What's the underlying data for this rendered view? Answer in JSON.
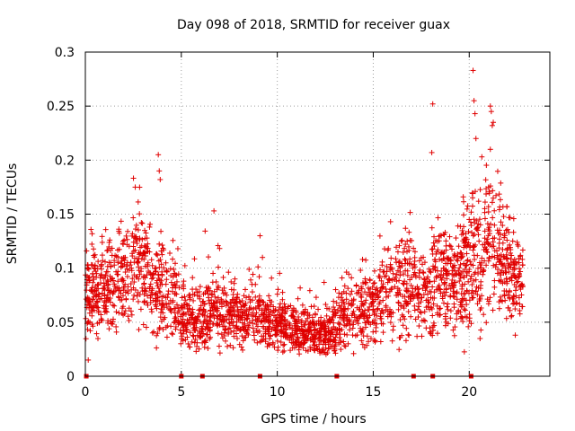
{
  "chart_data": {
    "type": "scatter",
    "title": "Day 098 of 2018, SRMTID for receiver guax",
    "xlabel": "GPS time / hours",
    "ylabel": "SRMTID / TECUs",
    "xlim": [
      0,
      24.2
    ],
    "ylim": [
      0,
      0.3
    ],
    "xticks": [
      0,
      5,
      10,
      15,
      20
    ],
    "xtick_labels": [
      "0",
      "5",
      "10",
      "15",
      "20"
    ],
    "yticks": [
      0,
      0.05,
      0.1,
      0.15,
      0.2,
      0.25,
      0.3
    ],
    "ytick_labels": [
      "0",
      "0.05",
      "0.1",
      "0.15",
      "0.2",
      "0.25",
      "0.3"
    ],
    "grid": true,
    "marker": "+",
    "color": "#e00000",
    "zero_level_markers_x": [
      0.05,
      5.0,
      6.1,
      9.1,
      13.1,
      17.1,
      18.1,
      20.1
    ],
    "series": [
      {
        "name": "SRMTID",
        "envelope_x": [
          0.0,
          0.5,
          1.0,
          1.5,
          2.0,
          2.5,
          3.0,
          3.5,
          4.0,
          4.5,
          5.0,
          5.5,
          6.0,
          6.5,
          7.0,
          7.5,
          8.0,
          8.5,
          9.0,
          9.5,
          10.0,
          10.5,
          11.0,
          11.5,
          12.0,
          12.5,
          13.0,
          13.5,
          14.0,
          14.5,
          15.0,
          15.5,
          16.0,
          16.5,
          17.0,
          17.5,
          18.0,
          18.5,
          19.0,
          19.5,
          20.0,
          20.5,
          21.0,
          21.5,
          22.0,
          22.5,
          22.8
        ],
        "envelope_mean": [
          0.075,
          0.08,
          0.082,
          0.085,
          0.09,
          0.1,
          0.105,
          0.08,
          0.085,
          0.07,
          0.058,
          0.055,
          0.052,
          0.06,
          0.058,
          0.055,
          0.055,
          0.055,
          0.055,
          0.052,
          0.048,
          0.045,
          0.042,
          0.04,
          0.038,
          0.037,
          0.045,
          0.06,
          0.062,
          0.06,
          0.065,
          0.075,
          0.08,
          0.085,
          0.085,
          0.08,
          0.085,
          0.09,
          0.085,
          0.09,
          0.105,
          0.12,
          0.13,
          0.12,
          0.1,
          0.09,
          0.085
        ],
        "envelope_spread": [
          0.02,
          0.022,
          0.022,
          0.022,
          0.022,
          0.025,
          0.03,
          0.025,
          0.025,
          0.02,
          0.015,
          0.014,
          0.014,
          0.016,
          0.015,
          0.015,
          0.014,
          0.014,
          0.015,
          0.014,
          0.014,
          0.013,
          0.012,
          0.011,
          0.011,
          0.011,
          0.014,
          0.016,
          0.017,
          0.017,
          0.018,
          0.02,
          0.022,
          0.023,
          0.022,
          0.022,
          0.024,
          0.025,
          0.024,
          0.026,
          0.032,
          0.038,
          0.04,
          0.033,
          0.025,
          0.022,
          0.02
        ],
        "outliers": [
          {
            "x": 0.15,
            "y": 0.015
          },
          {
            "x": 2.6,
            "y": 0.175
          },
          {
            "x": 3.8,
            "y": 0.205
          },
          {
            "x": 3.85,
            "y": 0.19
          },
          {
            "x": 3.9,
            "y": 0.182
          },
          {
            "x": 6.7,
            "y": 0.153
          },
          {
            "x": 9.1,
            "y": 0.13
          },
          {
            "x": 15.9,
            "y": 0.143
          },
          {
            "x": 18.1,
            "y": 0.252
          },
          {
            "x": 18.05,
            "y": 0.207
          },
          {
            "x": 20.2,
            "y": 0.283
          },
          {
            "x": 20.25,
            "y": 0.255
          },
          {
            "x": 20.3,
            "y": 0.243
          },
          {
            "x": 20.35,
            "y": 0.22
          },
          {
            "x": 21.1,
            "y": 0.25
          },
          {
            "x": 21.15,
            "y": 0.245
          },
          {
            "x": 21.2,
            "y": 0.232
          },
          {
            "x": 21.1,
            "y": 0.21
          },
          {
            "x": 22.4,
            "y": 0.038
          }
        ]
      }
    ]
  }
}
